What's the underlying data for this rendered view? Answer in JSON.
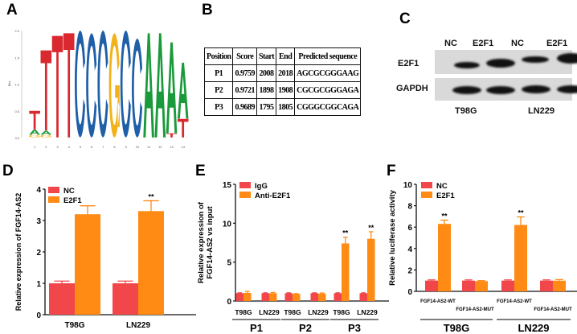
{
  "panels": {
    "a": "A",
    "b": "B",
    "c": "C",
    "d": "D",
    "e": "E",
    "f": "F"
  },
  "colors": {
    "nc": "#f2474a",
    "e2f1": "#ff8a14",
    "A": "#1a9a3a",
    "C": "#1f5fa8",
    "G": "#f2b21a",
    "T": "#d9282f"
  },
  "logo": {
    "ylabel": "Bits",
    "yticks": [
      "0.0",
      "0.5",
      "1.0",
      "1.5",
      "2.0"
    ],
    "positions": [
      "1",
      "2",
      "3",
      "4",
      "5",
      "6",
      "7",
      "8",
      "9",
      "10",
      "11",
      "12",
      "13",
      "14"
    ],
    "stacks": [
      [
        [
          "G",
          0.05
        ],
        [
          "A",
          0.1
        ],
        [
          "T",
          0.35
        ]
      ],
      [
        [
          "G",
          0.05
        ],
        [
          "A",
          0.08
        ],
        [
          "T",
          1.5
        ]
      ],
      [
        [
          "T",
          1.9
        ]
      ],
      [
        [
          "T",
          1.95
        ]
      ],
      [
        [
          "C",
          2.0
        ]
      ],
      [
        [
          "C",
          1.95
        ]
      ],
      [
        [
          "C",
          2.0
        ]
      ],
      [
        [
          "G",
          1.95
        ]
      ],
      [
        [
          "C",
          2.0
        ]
      ],
      [
        [
          "C",
          1.85
        ]
      ],
      [
        [
          "A",
          1.95
        ]
      ],
      [
        [
          "A",
          1.95
        ]
      ],
      [
        [
          "T",
          0.08
        ],
        [
          "A",
          1.7
        ]
      ],
      [
        [
          "T",
          0.35
        ],
        [
          "A",
          1.05
        ]
      ]
    ]
  },
  "table": {
    "headers": [
      "Position",
      "Score",
      "Start",
      "End",
      "Predicted sequence"
    ],
    "rows": [
      [
        "P1",
        "0.9759",
        "2008",
        "2018",
        "AGCGCGGGAAG"
      ],
      [
        "P2",
        "0.9721",
        "1898",
        "1908",
        "CGCGCGGGAGA"
      ],
      [
        "P3",
        "0.9689",
        "1795",
        "1805",
        "CGGGCGGCAGA"
      ]
    ]
  },
  "western": {
    "lanes": [
      "NC",
      "E2F1",
      "NC",
      "E2F1"
    ],
    "rows": [
      "E2F1",
      "GAPDH"
    ],
    "cells": [
      "T98G",
      "LN229"
    ]
  },
  "chart_data": [
    {
      "type": "bar",
      "id": "d",
      "ylabel": "Relative expression of FGF14-AS2",
      "ylim": [
        0,
        4
      ],
      "yticks": [
        0,
        1,
        2,
        3,
        4
      ],
      "categories": [
        "T98G",
        "LN229"
      ],
      "series": [
        {
          "name": "NC",
          "values": [
            1.0,
            1.0
          ],
          "errors": [
            0.07,
            0.07
          ]
        },
        {
          "name": "E2F1",
          "values": [
            3.2,
            3.3
          ],
          "errors": [
            0.27,
            0.33
          ]
        }
      ],
      "annotations": [
        "",
        "**",
        "",
        "**"
      ],
      "legend": "top-left"
    },
    {
      "type": "bar",
      "id": "e",
      "ylabel": "Relative expression of FGF14-AS2 vs input",
      "ylim": [
        0,
        15
      ],
      "yticks": [
        0,
        5,
        10,
        15
      ],
      "categories": [
        "T98G",
        "LN229",
        "T98G",
        "LN229",
        "T98G",
        "LN229"
      ],
      "groups": [
        "P1",
        "P2",
        "P3"
      ],
      "series": [
        {
          "name": "IgG",
          "values": [
            1.0,
            1.0,
            1.0,
            1.0,
            1.0,
            1.0
          ],
          "errors": [
            0.05,
            0.05,
            0.05,
            0.05,
            0.05,
            0.05
          ]
        },
        {
          "name": "Anti-E2F1",
          "values": [
            1.05,
            1.0,
            0.9,
            0.95,
            7.4,
            8.0
          ],
          "errors": [
            0.2,
            0.1,
            0.05,
            0.08,
            0.8,
            0.9
          ]
        }
      ],
      "annotations": [
        "",
        "",
        "",
        "",
        "**",
        "**"
      ],
      "legend": "top-left"
    },
    {
      "type": "bar",
      "id": "f",
      "ylabel": "Relative luciferase activity",
      "ylim": [
        0,
        10
      ],
      "yticks": [
        0,
        2,
        4,
        6,
        8,
        10
      ],
      "categories": [
        "FGF14-AS2-WT",
        "FGF14-AS2-MUT",
        "FGF14-AS2-WT",
        "FGF14-AS2-MUT"
      ],
      "groups": [
        "T98G",
        "LN229"
      ],
      "series": [
        {
          "name": "NC",
          "values": [
            1.0,
            1.0,
            1.0,
            1.0
          ],
          "errors": [
            0.07,
            0.07,
            0.07,
            0.07
          ]
        },
        {
          "name": "E2F1",
          "values": [
            6.3,
            0.95,
            6.2,
            1.0
          ],
          "errors": [
            0.35,
            0.05,
            0.75,
            0.1
          ]
        }
      ],
      "annotations": [
        "**",
        "",
        "**",
        ""
      ],
      "legend": "top-left"
    }
  ]
}
